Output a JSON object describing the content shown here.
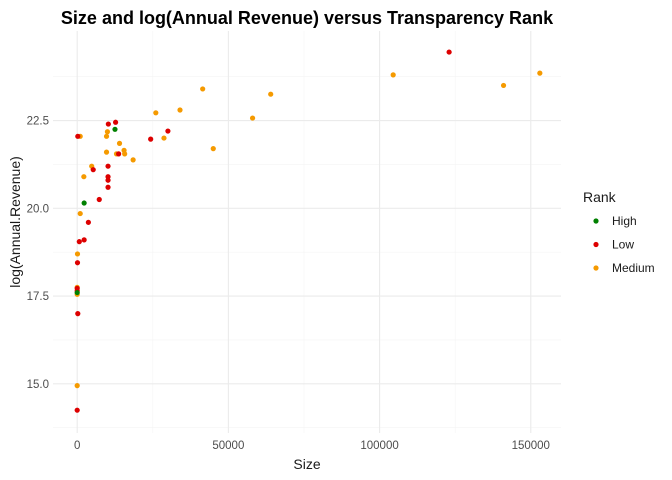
{
  "chart_data": {
    "type": "scatter",
    "title": "Size and log(Annual Revenue) versus Transparency Rank",
    "xlabel": "Size",
    "ylabel": "log(Annual.Revenue)",
    "xlim": [
      -8000,
      160000
    ],
    "ylim": [
      13.6,
      25.05
    ],
    "x_ticks": [
      0,
      50000,
      100000,
      150000
    ],
    "x_tick_labels": [
      "0",
      "50000",
      "100000",
      "150000"
    ],
    "y_ticks": [
      15.0,
      17.5,
      20.0,
      22.5
    ],
    "y_tick_labels": [
      "15.0",
      "17.5",
      "20.0",
      "22.5"
    ],
    "grid": true,
    "legend": {
      "title": "Rank",
      "position": "right",
      "entries": [
        {
          "name": "High",
          "color": "#008000"
        },
        {
          "name": "Low",
          "color": "#dd0000"
        },
        {
          "name": "Medium",
          "color": "#f59a00"
        }
      ]
    },
    "series": [
      {
        "name": "High",
        "color": "#008000",
        "points": [
          [
            12500,
            22.25
          ],
          [
            2300,
            20.15
          ],
          [
            0,
            17.6
          ]
        ]
      },
      {
        "name": "Low",
        "color": "#dd0000",
        "points": [
          [
            123000,
            24.45
          ],
          [
            12700,
            22.45
          ],
          [
            10300,
            22.4
          ],
          [
            30000,
            22.2
          ],
          [
            24300,
            21.97
          ],
          [
            200,
            22.05
          ],
          [
            10200,
            21.2
          ],
          [
            5300,
            21.1
          ],
          [
            10200,
            20.9
          ],
          [
            10200,
            20.8
          ],
          [
            10200,
            20.6
          ],
          [
            7300,
            20.25
          ],
          [
            3700,
            19.6
          ],
          [
            2300,
            19.1
          ],
          [
            700,
            19.05
          ],
          [
            100,
            18.45
          ],
          [
            0,
            17.72
          ],
          [
            0,
            17.65
          ],
          [
            200,
            17.0
          ],
          [
            0,
            14.25
          ],
          [
            13700,
            21.55
          ]
        ]
      },
      {
        "name": "Medium",
        "color": "#f59a00",
        "points": [
          [
            153000,
            23.85
          ],
          [
            104500,
            23.8
          ],
          [
            141000,
            23.5
          ],
          [
            41500,
            23.4
          ],
          [
            64000,
            23.25
          ],
          [
            34000,
            22.8
          ],
          [
            26000,
            22.72
          ],
          [
            58000,
            22.57
          ],
          [
            10000,
            22.18
          ],
          [
            9700,
            22.05
          ],
          [
            14000,
            21.85
          ],
          [
            28700,
            22.0
          ],
          [
            1000,
            22.05
          ],
          [
            45000,
            21.7
          ],
          [
            15500,
            21.65
          ],
          [
            9700,
            21.6
          ],
          [
            13000,
            21.55
          ],
          [
            15700,
            21.55
          ],
          [
            18500,
            21.38
          ],
          [
            4800,
            21.2
          ],
          [
            2200,
            20.9
          ],
          [
            1000,
            19.85
          ],
          [
            100,
            18.7
          ],
          [
            0,
            17.75
          ],
          [
            0,
            17.55
          ],
          [
            0,
            14.95
          ]
        ]
      }
    ]
  }
}
